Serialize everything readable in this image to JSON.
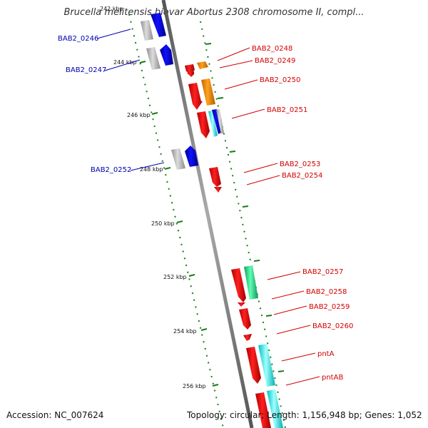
{
  "title": "Brucella melitensis biovar Abortus 2308 chromosome II, compl...",
  "accession": "Accession: NC_007624",
  "summary": "Topology: circular; Length: 1,156,948 bp; Genes: 1,052",
  "kbp_labels": [
    "242 kbp",
    "244 kbp",
    "246 kbp",
    "248 kbp",
    "250 kbp",
    "252 kbp",
    "254 kbp",
    "256 kbp"
  ],
  "gene_labels_reverse": [
    "BAB2_0246",
    "BAB2_0247",
    "BAB2_0252"
  ],
  "gene_labels_forward": [
    "BAB2_0248",
    "BAB2_0249",
    "BAB2_0250",
    "BAB2_0251",
    "BAB2_0253",
    "BAB2_0254",
    "BAB2_0257",
    "BAB2_0258",
    "BAB2_0259",
    "BAB2_0260",
    "pntA",
    "pntAB"
  ],
  "colors": {
    "backbone": "#808080",
    "forward_cds": "#e00000",
    "orange_cds": "#f08c00",
    "blue_cds": "#0000e0",
    "cyan_cds": "#00ffff",
    "mint_cds": "#20e090",
    "gray_cds": "#b4b4b4",
    "ticks": "#1a7a1a",
    "label_forward": "#d40000",
    "label_reverse": "#0000b0"
  }
}
